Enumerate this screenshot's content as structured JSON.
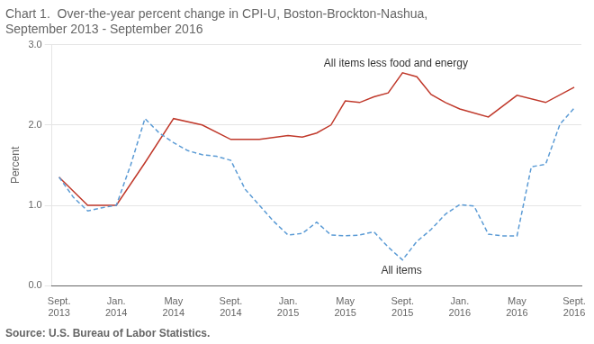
{
  "chart_data": {
    "type": "line",
    "title": [
      "Chart 1.  Over-the-year percent change in CPI-U, Boston-Brockton-Nashua,",
      "September 2013 - September 2016"
    ],
    "source": "Source: U.S. Bureau of Labor Statistics.",
    "ylabel": "Percent",
    "xlim": [
      -0.5,
      36.5
    ],
    "xticks": [
      {
        "value": 0,
        "label": "Sept.\n2013"
      },
      {
        "value": 4,
        "label": "Jan.\n2014"
      },
      {
        "value": 8,
        "label": "May\n2014"
      },
      {
        "value": 12,
        "label": "Sept.\n2014"
      },
      {
        "value": 16,
        "label": "Jan.\n2015"
      },
      {
        "value": 20,
        "label": "May\n2015"
      },
      {
        "value": 24,
        "label": "Sept.\n2015"
      },
      {
        "value": 28,
        "label": "Jan.\n2016"
      },
      {
        "value": 32,
        "label": "May\n2016"
      },
      {
        "value": 36,
        "label": "Sept.\n2016"
      }
    ],
    "ylim": [
      0.0,
      3.0
    ],
    "yticks": [
      {
        "value": 0,
        "label": "0.0"
      },
      {
        "value": 1,
        "label": "1.0"
      },
      {
        "value": 2,
        "label": "2.0"
      },
      {
        "value": 3,
        "label": "3.0"
      }
    ],
    "grid": "y",
    "series": [
      {
        "color": "#5b9bd5",
        "line_style": "dashed",
        "x": [
          0,
          1,
          2,
          3,
          4,
          5,
          6,
          7,
          8,
          9,
          10,
          11,
          12,
          13,
          14,
          15,
          16,
          17,
          18,
          19,
          20,
          21,
          22,
          23,
          24,
          25,
          26,
          27,
          28,
          29,
          30,
          31,
          32,
          33,
          34,
          35,
          36
        ],
        "values": [
          1.35,
          1.1,
          0.93,
          0.97,
          1.0,
          1.5,
          2.08,
          1.9,
          1.78,
          1.68,
          1.63,
          1.61,
          1.56,
          1.2,
          1.0,
          0.8,
          0.63,
          0.65,
          0.79,
          0.63,
          0.62,
          0.63,
          0.67,
          0.48,
          0.32,
          0.55,
          0.7,
          0.89,
          1.01,
          0.99,
          0.64,
          0.62,
          0.62,
          1.48,
          1.51,
          2.01,
          2.21
        ]
      },
      {
        "color": "#c0392b",
        "line_style": "solid",
        "x": [
          0,
          2,
          4,
          6,
          8,
          10,
          12,
          14,
          16,
          17,
          18,
          19,
          20,
          21,
          22,
          23,
          24,
          25,
          26,
          27,
          28,
          30,
          32,
          34,
          36
        ],
        "values": [
          1.35,
          1.0,
          1.0,
          1.53,
          2.08,
          2.0,
          1.82,
          1.82,
          1.87,
          1.85,
          1.9,
          2.0,
          2.3,
          2.28,
          2.35,
          2.4,
          2.65,
          2.6,
          2.38,
          2.28,
          2.2,
          2.1,
          2.37,
          2.28,
          2.47
        ]
      }
    ],
    "annotations": [
      {
        "text": "All items less food and energy",
        "x": 18.5,
        "y": 2.7
      },
      {
        "text": "All items",
        "x": 22.5,
        "y": 0.25
      }
    ]
  }
}
